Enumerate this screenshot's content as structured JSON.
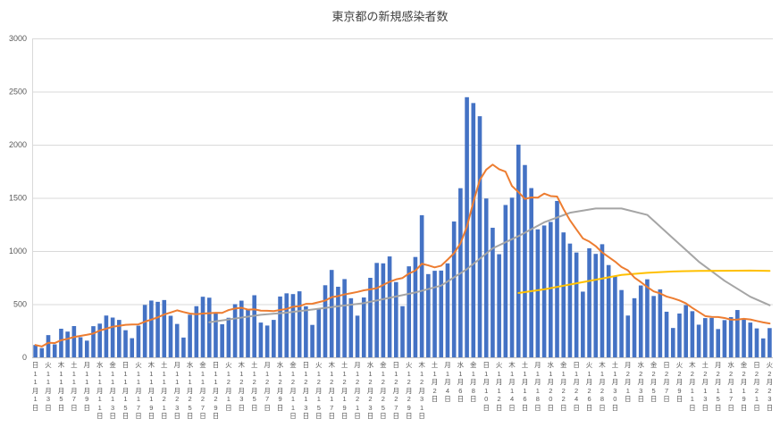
{
  "chart_data": {
    "type": "bar",
    "title": "東京都の新規感染者数",
    "ylim": [
      0,
      3000
    ],
    "yticks": [
      0,
      500,
      1000,
      1500,
      2000,
      2500,
      3000
    ],
    "grid": true,
    "legend": false,
    "x_labels": [
      {
        "w": "日",
        "d": "11月1日"
      },
      {
        "w": "火",
        "d": "11月3日"
      },
      {
        "w": "木",
        "d": "11月5日"
      },
      {
        "w": "土",
        "d": "11月7日"
      },
      {
        "w": "月",
        "d": "11月9日"
      },
      {
        "w": "水",
        "d": "11月11日"
      },
      {
        "w": "金",
        "d": "11月13日"
      },
      {
        "w": "日",
        "d": "11月15日"
      },
      {
        "w": "火",
        "d": "11月17日"
      },
      {
        "w": "木",
        "d": "11月19日"
      },
      {
        "w": "土",
        "d": "11月21日"
      },
      {
        "w": "月",
        "d": "11月23日"
      },
      {
        "w": "水",
        "d": "11月25日"
      },
      {
        "w": "金",
        "d": "11月27日"
      },
      {
        "w": "日",
        "d": "11月29日"
      },
      {
        "w": "火",
        "d": "12月1日"
      },
      {
        "w": "木",
        "d": "12月3日"
      },
      {
        "w": "土",
        "d": "12月5日"
      },
      {
        "w": "月",
        "d": "12月7日"
      },
      {
        "w": "水",
        "d": "12月9日"
      },
      {
        "w": "金",
        "d": "12月11日"
      },
      {
        "w": "日",
        "d": "12月13日"
      },
      {
        "w": "火",
        "d": "12月15日"
      },
      {
        "w": "木",
        "d": "12月17日"
      },
      {
        "w": "土",
        "d": "12月19日"
      },
      {
        "w": "月",
        "d": "12月21日"
      },
      {
        "w": "水",
        "d": "12月23日"
      },
      {
        "w": "金",
        "d": "12月25日"
      },
      {
        "w": "日",
        "d": "12月27日"
      },
      {
        "w": "火",
        "d": "12月29日"
      },
      {
        "w": "木",
        "d": "12月31日"
      },
      {
        "w": "土",
        "d": "1月2日"
      },
      {
        "w": "月",
        "d": "1月4日"
      },
      {
        "w": "水",
        "d": "1月6日"
      },
      {
        "w": "金",
        "d": "1月8日"
      },
      {
        "w": "日",
        "d": "1月10日"
      },
      {
        "w": "火",
        "d": "1月12日"
      },
      {
        "w": "木",
        "d": "1月14日"
      },
      {
        "w": "土",
        "d": "1月16日"
      },
      {
        "w": "月",
        "d": "1月18日"
      },
      {
        "w": "水",
        "d": "1月20日"
      },
      {
        "w": "金",
        "d": "1月22日"
      },
      {
        "w": "日",
        "d": "1月24日"
      },
      {
        "w": "火",
        "d": "1月26日"
      },
      {
        "w": "木",
        "d": "1月28日"
      },
      {
        "w": "土",
        "d": "1月30日"
      },
      {
        "w": "月",
        "d": "2月1日"
      },
      {
        "w": "水",
        "d": "2月3日"
      },
      {
        "w": "金",
        "d": "2月5日"
      },
      {
        "w": "日",
        "d": "2月7日"
      },
      {
        "w": "火",
        "d": "2月9日"
      },
      {
        "w": "木",
        "d": "2月11日"
      },
      {
        "w": "土",
        "d": "2月13日"
      },
      {
        "w": "月",
        "d": "2月15日"
      },
      {
        "w": "水",
        "d": "2月17日"
      },
      {
        "w": "金",
        "d": "2月19日"
      },
      {
        "w": "日",
        "d": "2月21日"
      },
      {
        "w": "火",
        "d": "2月23日"
      }
    ],
    "series": [
      {
        "name": "daily-new-cases-bars",
        "type": "bar",
        "color": "#4472C4",
        "values": [
          116,
          87,
          209,
          122,
          269,
          242,
          294,
          189,
          157,
          293,
          317,
          393,
          374,
          352,
          255,
          180,
          298,
          493,
          534,
          522,
          539,
          391,
          314,
          186,
          401,
          481,
          570,
          561,
          418,
          311,
          372,
          500,
          533,
          449,
          584,
          327,
          299,
          352,
          572,
          602,
          595,
          621,
          480,
          305,
          460,
          678,
          822,
          664,
          736,
          556,
          392,
          563,
          748,
          888,
          884,
          949,
          708,
          481,
          856,
          944,
          1337,
          783,
          814,
          816,
          884,
          1278,
          1591,
          2447,
          2392,
          2268,
          1494,
          1219,
          970,
          1433,
          1502,
          2001,
          1809,
          1592,
          1204,
          1240,
          1274,
          1471,
          1175,
          1070,
          986,
          618,
          1026,
          973,
          1064,
          868,
          769,
          633,
          393,
          556,
          676,
          734,
          577,
          639,
          429,
          276,
          412,
          491,
          434,
          307,
          369,
          371,
          266,
          350,
          378,
          445,
          353,
          327,
          272,
          178,
          275
        ]
      },
      {
        "name": "orange-7day-moving-average",
        "type": "line",
        "color": "#ED7D31",
        "values": [
          116,
          102,
          137,
          134,
          161,
          174,
          191,
          202,
          212,
          224,
          252,
          269,
          288,
          296,
          306,
          309,
          310,
          335,
          355,
          376,
          403,
          422,
          442,
          426,
          412,
          405,
          412,
          415,
          419,
          418,
          445,
          459,
          466,
          449,
          452,
          439,
          438,
          435,
          445,
          455,
          476,
          481,
          503,
          504,
          519,
          534,
          566,
          576,
          592,
          603,
          615,
          630,
          640,
          650,
          681,
          711,
          733,
          746,
          788,
          816,
          880,
          865,
          846,
          862,
          919,
          979,
          1072,
          1230,
          1460,
          1668,
          1765,
          1813,
          1769,
          1746,
          1611,
          1555,
          1490,
          1504,
          1502,
          1540,
          1517,
          1513,
          1395,
          1289,
          1203,
          1119,
          1089,
          1046,
          987,
          944,
          901,
          850,
          818,
          751,
          708,
          661,
          620,
          601,
          572,
          555,
          535,
          508,
          465,
          427,
          388,
          380,
          379,
          370,
          354,
          355,
          362,
          356,
          342,
          329,
          318
        ]
      },
      {
        "name": "gray-long-term-average",
        "type": "line",
        "color": "#A5A5A5",
        "points": [
          [
            28,
            330
          ],
          [
            32,
            365
          ],
          [
            36,
            400
          ],
          [
            40,
            420
          ],
          [
            44,
            450
          ],
          [
            48,
            480
          ],
          [
            52,
            510
          ],
          [
            56,
            560
          ],
          [
            60,
            610
          ],
          [
            64,
            675
          ],
          [
            68,
            830
          ],
          [
            72,
            1025
          ],
          [
            76,
            1140
          ],
          [
            80,
            1270
          ],
          [
            84,
            1360
          ],
          [
            88,
            1400
          ],
          [
            92,
            1400
          ],
          [
            96,
            1340
          ],
          [
            100,
            1120
          ],
          [
            104,
            900
          ],
          [
            108,
            720
          ],
          [
            112,
            570
          ],
          [
            115,
            490
          ]
        ]
      },
      {
        "name": "yellow-plateau-line",
        "type": "line",
        "color": "#FFC000",
        "points": [
          [
            76,
            605
          ],
          [
            80,
            640
          ],
          [
            84,
            685
          ],
          [
            88,
            730
          ],
          [
            92,
            775
          ],
          [
            96,
            795
          ],
          [
            100,
            808
          ],
          [
            104,
            813
          ],
          [
            108,
            814
          ],
          [
            112,
            816
          ],
          [
            115,
            813
          ]
        ]
      }
    ]
  }
}
